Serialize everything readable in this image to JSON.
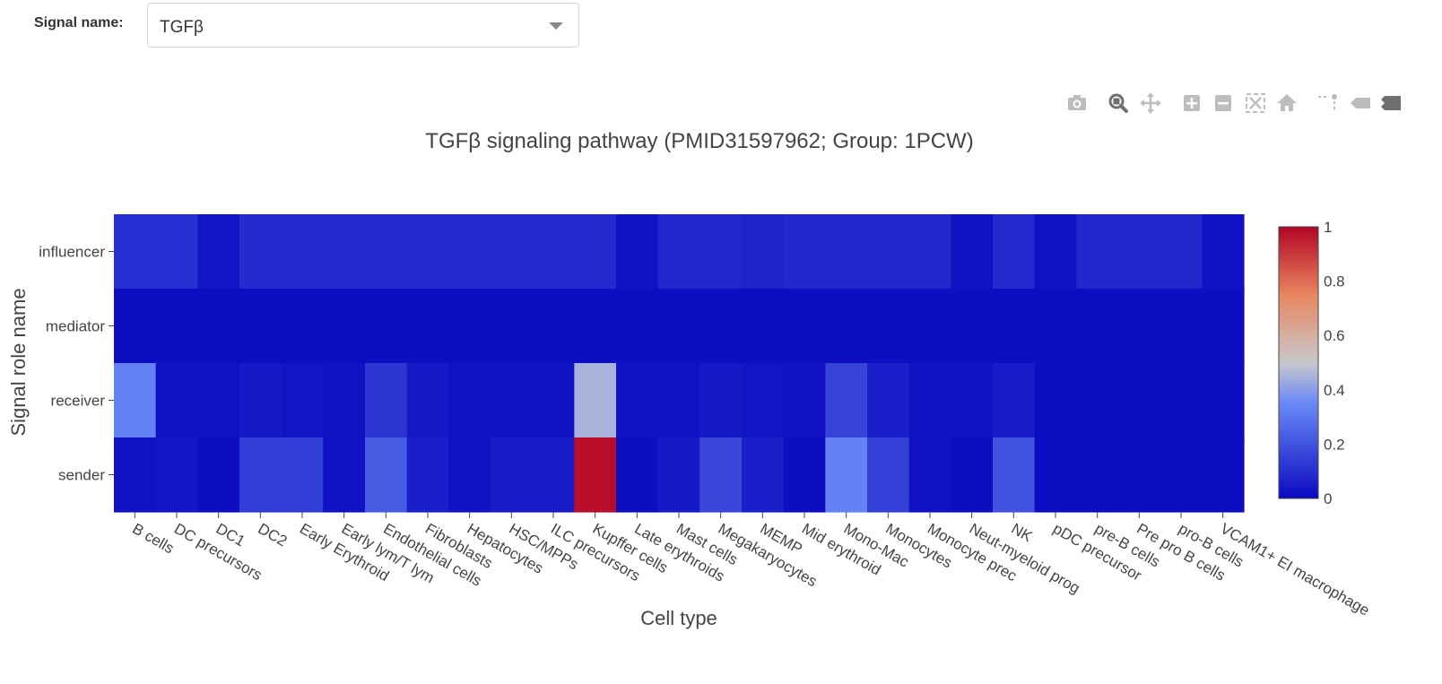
{
  "control": {
    "label": "Signal name:",
    "selected": "TGFβ"
  },
  "modebar": {
    "icons": [
      "camera-icon",
      "zoom-icon",
      "pan-icon",
      "zoom-in-icon",
      "zoom-out-icon",
      "autoscale-icon",
      "reset-axes-icon",
      "spike-lines-icon",
      "hover-closest-icon",
      "hover-compare-icon"
    ],
    "color": "#bdbdbd",
    "active_color": "#7a7a7a"
  },
  "chart_data": {
    "type": "heatmap",
    "title": "TGFβ signaling pathway (PMID31597962; Group: 1PCW)",
    "xlabel": "Cell type",
    "ylabel": "Signal role name",
    "x": [
      "B cells",
      "DC precursors",
      "DC1",
      "DC2",
      "Early Erythroid",
      "Early lym/T lym",
      "Endothelial cells",
      "Fibroblasts",
      "Hepatocytes",
      "HSC/MPPs",
      "ILC precursors",
      "Kupffer cells",
      "Late erythroids",
      "Mast cells",
      "Megakaryocytes",
      "MEMP",
      "Mid erythroid",
      "Mono-Mac",
      "Monocytes",
      "Monocyte prec",
      "Neut-myeloid prog",
      "NK",
      "pDC precursor",
      "pre-B cells",
      "Pre pro B cells",
      "pro-B cells",
      "VCAM1+ EI macrophage"
    ],
    "y": [
      "influencer",
      "mediator",
      "receiver",
      "sender"
    ],
    "z": [
      [
        0.1,
        0.1,
        0.03,
        0.09,
        0.09,
        0.09,
        0.09,
        0.09,
        0.09,
        0.09,
        0.09,
        0.09,
        0.02,
        0.08,
        0.08,
        0.07,
        0.08,
        0.08,
        0.08,
        0.08,
        0.02,
        0.09,
        0.02,
        0.08,
        0.08,
        0.08,
        0.02
      ],
      [
        0.01,
        0.01,
        0.01,
        0.01,
        0.01,
        0.01,
        0.01,
        0.01,
        0.01,
        0.01,
        0.01,
        0.01,
        0.01,
        0.01,
        0.01,
        0.01,
        0.01,
        0.01,
        0.01,
        0.01,
        0.01,
        0.01,
        0.01,
        0.01,
        0.01,
        0.01,
        0.01
      ],
      [
        0.33,
        0.02,
        0.02,
        0.04,
        0.03,
        0.02,
        0.12,
        0.04,
        0.02,
        0.02,
        0.02,
        0.45,
        0.02,
        0.02,
        0.04,
        0.03,
        0.02,
        0.16,
        0.06,
        0.02,
        0.02,
        0.05,
        0.01,
        0.01,
        0.01,
        0.01,
        0.01
      ],
      [
        0.02,
        0.03,
        0.01,
        0.14,
        0.14,
        0.02,
        0.22,
        0.06,
        0.02,
        0.05,
        0.05,
        0.98,
        0.01,
        0.04,
        0.17,
        0.06,
        0.01,
        0.33,
        0.15,
        0.02,
        0.01,
        0.2,
        0.01,
        0.01,
        0.01,
        0.01,
        0.01
      ]
    ],
    "zlim": [
      0,
      1
    ],
    "colorbar_ticks": [
      0,
      0.2,
      0.4,
      0.6,
      0.8,
      1
    ],
    "colorscale": [
      [
        0,
        "#0a0ac0"
      ],
      [
        0.35,
        "#6a89f7"
      ],
      [
        0.5,
        "#c8c8cc"
      ],
      [
        0.75,
        "#e8865e"
      ],
      [
        1,
        "#b40426"
      ]
    ]
  }
}
